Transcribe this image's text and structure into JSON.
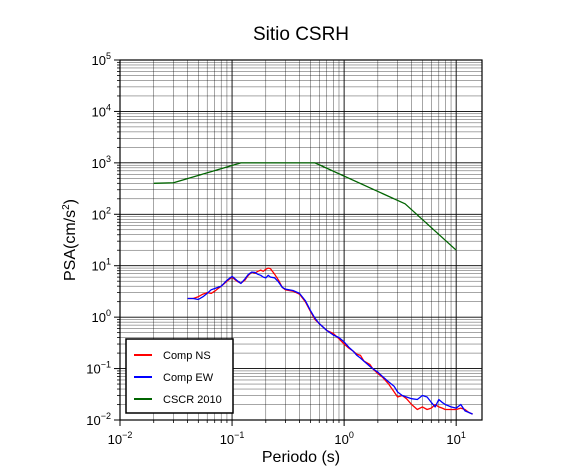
{
  "chart_data": {
    "type": "line",
    "title": "Sitio CSRH",
    "xlabel": "Periodo (s)",
    "ylabel_main": "PSA(cm/s",
    "ylabel_sup": "2",
    "ylabel_end": ")",
    "x_scale": "log",
    "y_scale": "log",
    "xlim": [
      0.01,
      17
    ],
    "ylim": [
      0.01,
      100000
    ],
    "grid": true,
    "legend_position": "bottom-left",
    "x_ticks": [
      {
        "base": "10",
        "exp": "−2",
        "v": 0.01
      },
      {
        "base": "10",
        "exp": "−1",
        "v": 0.1
      },
      {
        "base": "10",
        "exp": "0",
        "v": 1
      },
      {
        "base": "10",
        "exp": "1",
        "v": 10
      }
    ],
    "y_ticks": [
      {
        "base": "10",
        "exp": "−2",
        "v": 0.01
      },
      {
        "base": "10",
        "exp": "−1",
        "v": 0.1
      },
      {
        "base": "10",
        "exp": "0",
        "v": 1
      },
      {
        "base": "10",
        "exp": "1",
        "v": 10
      },
      {
        "base": "10",
        "exp": "2",
        "v": 100
      },
      {
        "base": "10",
        "exp": "3",
        "v": 1000
      },
      {
        "base": "10",
        "exp": "4",
        "v": 10000
      },
      {
        "base": "10",
        "exp": "5",
        "v": 100000
      }
    ],
    "series": [
      {
        "name": "Comp NS",
        "color": "#ff0000",
        "points": [
          [
            0.04,
            2.3
          ],
          [
            0.045,
            2.3
          ],
          [
            0.05,
            2.5
          ],
          [
            0.055,
            2.8
          ],
          [
            0.06,
            3.0
          ],
          [
            0.065,
            2.9
          ],
          [
            0.07,
            3.2
          ],
          [
            0.075,
            3.6
          ],
          [
            0.08,
            4.0
          ],
          [
            0.09,
            5.0
          ],
          [
            0.1,
            6.0
          ],
          [
            0.11,
            5.0
          ],
          [
            0.12,
            4.6
          ],
          [
            0.13,
            5.2
          ],
          [
            0.14,
            6.5
          ],
          [
            0.15,
            7.5
          ],
          [
            0.16,
            7.2
          ],
          [
            0.17,
            7.8
          ],
          [
            0.18,
            8.2
          ],
          [
            0.19,
            7.8
          ],
          [
            0.2,
            8.5
          ],
          [
            0.21,
            9.0
          ],
          [
            0.22,
            8.8
          ],
          [
            0.24,
            6.8
          ],
          [
            0.26,
            5.2
          ],
          [
            0.28,
            3.8
          ],
          [
            0.3,
            3.4
          ],
          [
            0.35,
            3.2
          ],
          [
            0.4,
            2.8
          ],
          [
            0.45,
            2.0
          ],
          [
            0.5,
            1.3
          ],
          [
            0.55,
            0.9
          ],
          [
            0.6,
            0.75
          ],
          [
            0.7,
            0.55
          ],
          [
            0.8,
            0.48
          ],
          [
            0.9,
            0.38
          ],
          [
            1.0,
            0.3
          ],
          [
            1.1,
            0.25
          ],
          [
            1.2,
            0.22
          ],
          [
            1.3,
            0.19
          ],
          [
            1.4,
            0.18
          ],
          [
            1.5,
            0.14
          ],
          [
            1.7,
            0.12
          ],
          [
            1.8,
            0.1
          ],
          [
            2.0,
            0.08
          ],
          [
            2.2,
            0.068
          ],
          [
            2.5,
            0.05
          ],
          [
            2.8,
            0.035
          ],
          [
            3.0,
            0.028
          ],
          [
            3.3,
            0.03
          ],
          [
            3.6,
            0.026
          ],
          [
            4.0,
            0.02
          ],
          [
            4.5,
            0.016
          ],
          [
            5.0,
            0.018
          ],
          [
            5.5,
            0.016
          ],
          [
            6.0,
            0.017
          ],
          [
            6.5,
            0.02
          ],
          [
            7.0,
            0.018
          ],
          [
            7.5,
            0.017
          ],
          [
            8.0,
            0.016
          ],
          [
            9.0,
            0.016
          ],
          [
            10.0,
            0.016
          ],
          [
            11.0,
            0.017
          ],
          [
            12.0,
            0.016
          ],
          [
            13.0,
            0.014
          ],
          [
            14.0,
            0.013
          ]
        ]
      },
      {
        "name": "Comp EW",
        "color": "#0000ff",
        "points": [
          [
            0.04,
            2.3
          ],
          [
            0.045,
            2.3
          ],
          [
            0.05,
            2.2
          ],
          [
            0.055,
            2.5
          ],
          [
            0.06,
            2.9
          ],
          [
            0.065,
            3.4
          ],
          [
            0.07,
            3.6
          ],
          [
            0.08,
            4.0
          ],
          [
            0.09,
            5.2
          ],
          [
            0.1,
            6.2
          ],
          [
            0.11,
            5.2
          ],
          [
            0.12,
            4.5
          ],
          [
            0.13,
            5.5
          ],
          [
            0.14,
            6.8
          ],
          [
            0.15,
            7.5
          ],
          [
            0.16,
            7.4
          ],
          [
            0.17,
            6.8
          ],
          [
            0.18,
            6.5
          ],
          [
            0.19,
            6.0
          ],
          [
            0.2,
            5.8
          ],
          [
            0.21,
            6.5
          ],
          [
            0.22,
            6.0
          ],
          [
            0.24,
            5.8
          ],
          [
            0.26,
            4.8
          ],
          [
            0.28,
            3.8
          ],
          [
            0.3,
            3.5
          ],
          [
            0.35,
            3.3
          ],
          [
            0.4,
            2.9
          ],
          [
            0.45,
            2.1
          ],
          [
            0.5,
            1.35
          ],
          [
            0.55,
            0.95
          ],
          [
            0.6,
            0.75
          ],
          [
            0.7,
            0.55
          ],
          [
            0.8,
            0.45
          ],
          [
            0.9,
            0.4
          ],
          [
            1.0,
            0.33
          ],
          [
            1.1,
            0.26
          ],
          [
            1.2,
            0.22
          ],
          [
            1.3,
            0.18
          ],
          [
            1.4,
            0.16
          ],
          [
            1.5,
            0.14
          ],
          [
            1.7,
            0.11
          ],
          [
            1.8,
            0.1
          ],
          [
            2.0,
            0.085
          ],
          [
            2.2,
            0.07
          ],
          [
            2.5,
            0.055
          ],
          [
            2.8,
            0.045
          ],
          [
            3.0,
            0.035
          ],
          [
            3.3,
            0.03
          ],
          [
            3.6,
            0.028
          ],
          [
            4.0,
            0.026
          ],
          [
            4.5,
            0.025
          ],
          [
            5.0,
            0.03
          ],
          [
            5.5,
            0.028
          ],
          [
            6.0,
            0.022
          ],
          [
            6.5,
            0.018
          ],
          [
            7.0,
            0.025
          ],
          [
            7.5,
            0.022
          ],
          [
            8.0,
            0.02
          ],
          [
            9.0,
            0.018
          ],
          [
            10.0,
            0.017
          ],
          [
            11.0,
            0.02
          ],
          [
            12.0,
            0.015
          ],
          [
            13.0,
            0.014
          ],
          [
            14.0,
            0.013
          ]
        ]
      },
      {
        "name": "CSCR 2010",
        "color": "#006400",
        "points": [
          [
            0.02,
            400
          ],
          [
            0.03,
            410
          ],
          [
            0.12,
            1000
          ],
          [
            0.55,
            1000
          ],
          [
            3.5,
            160
          ],
          [
            10.0,
            20
          ]
        ]
      }
    ]
  }
}
